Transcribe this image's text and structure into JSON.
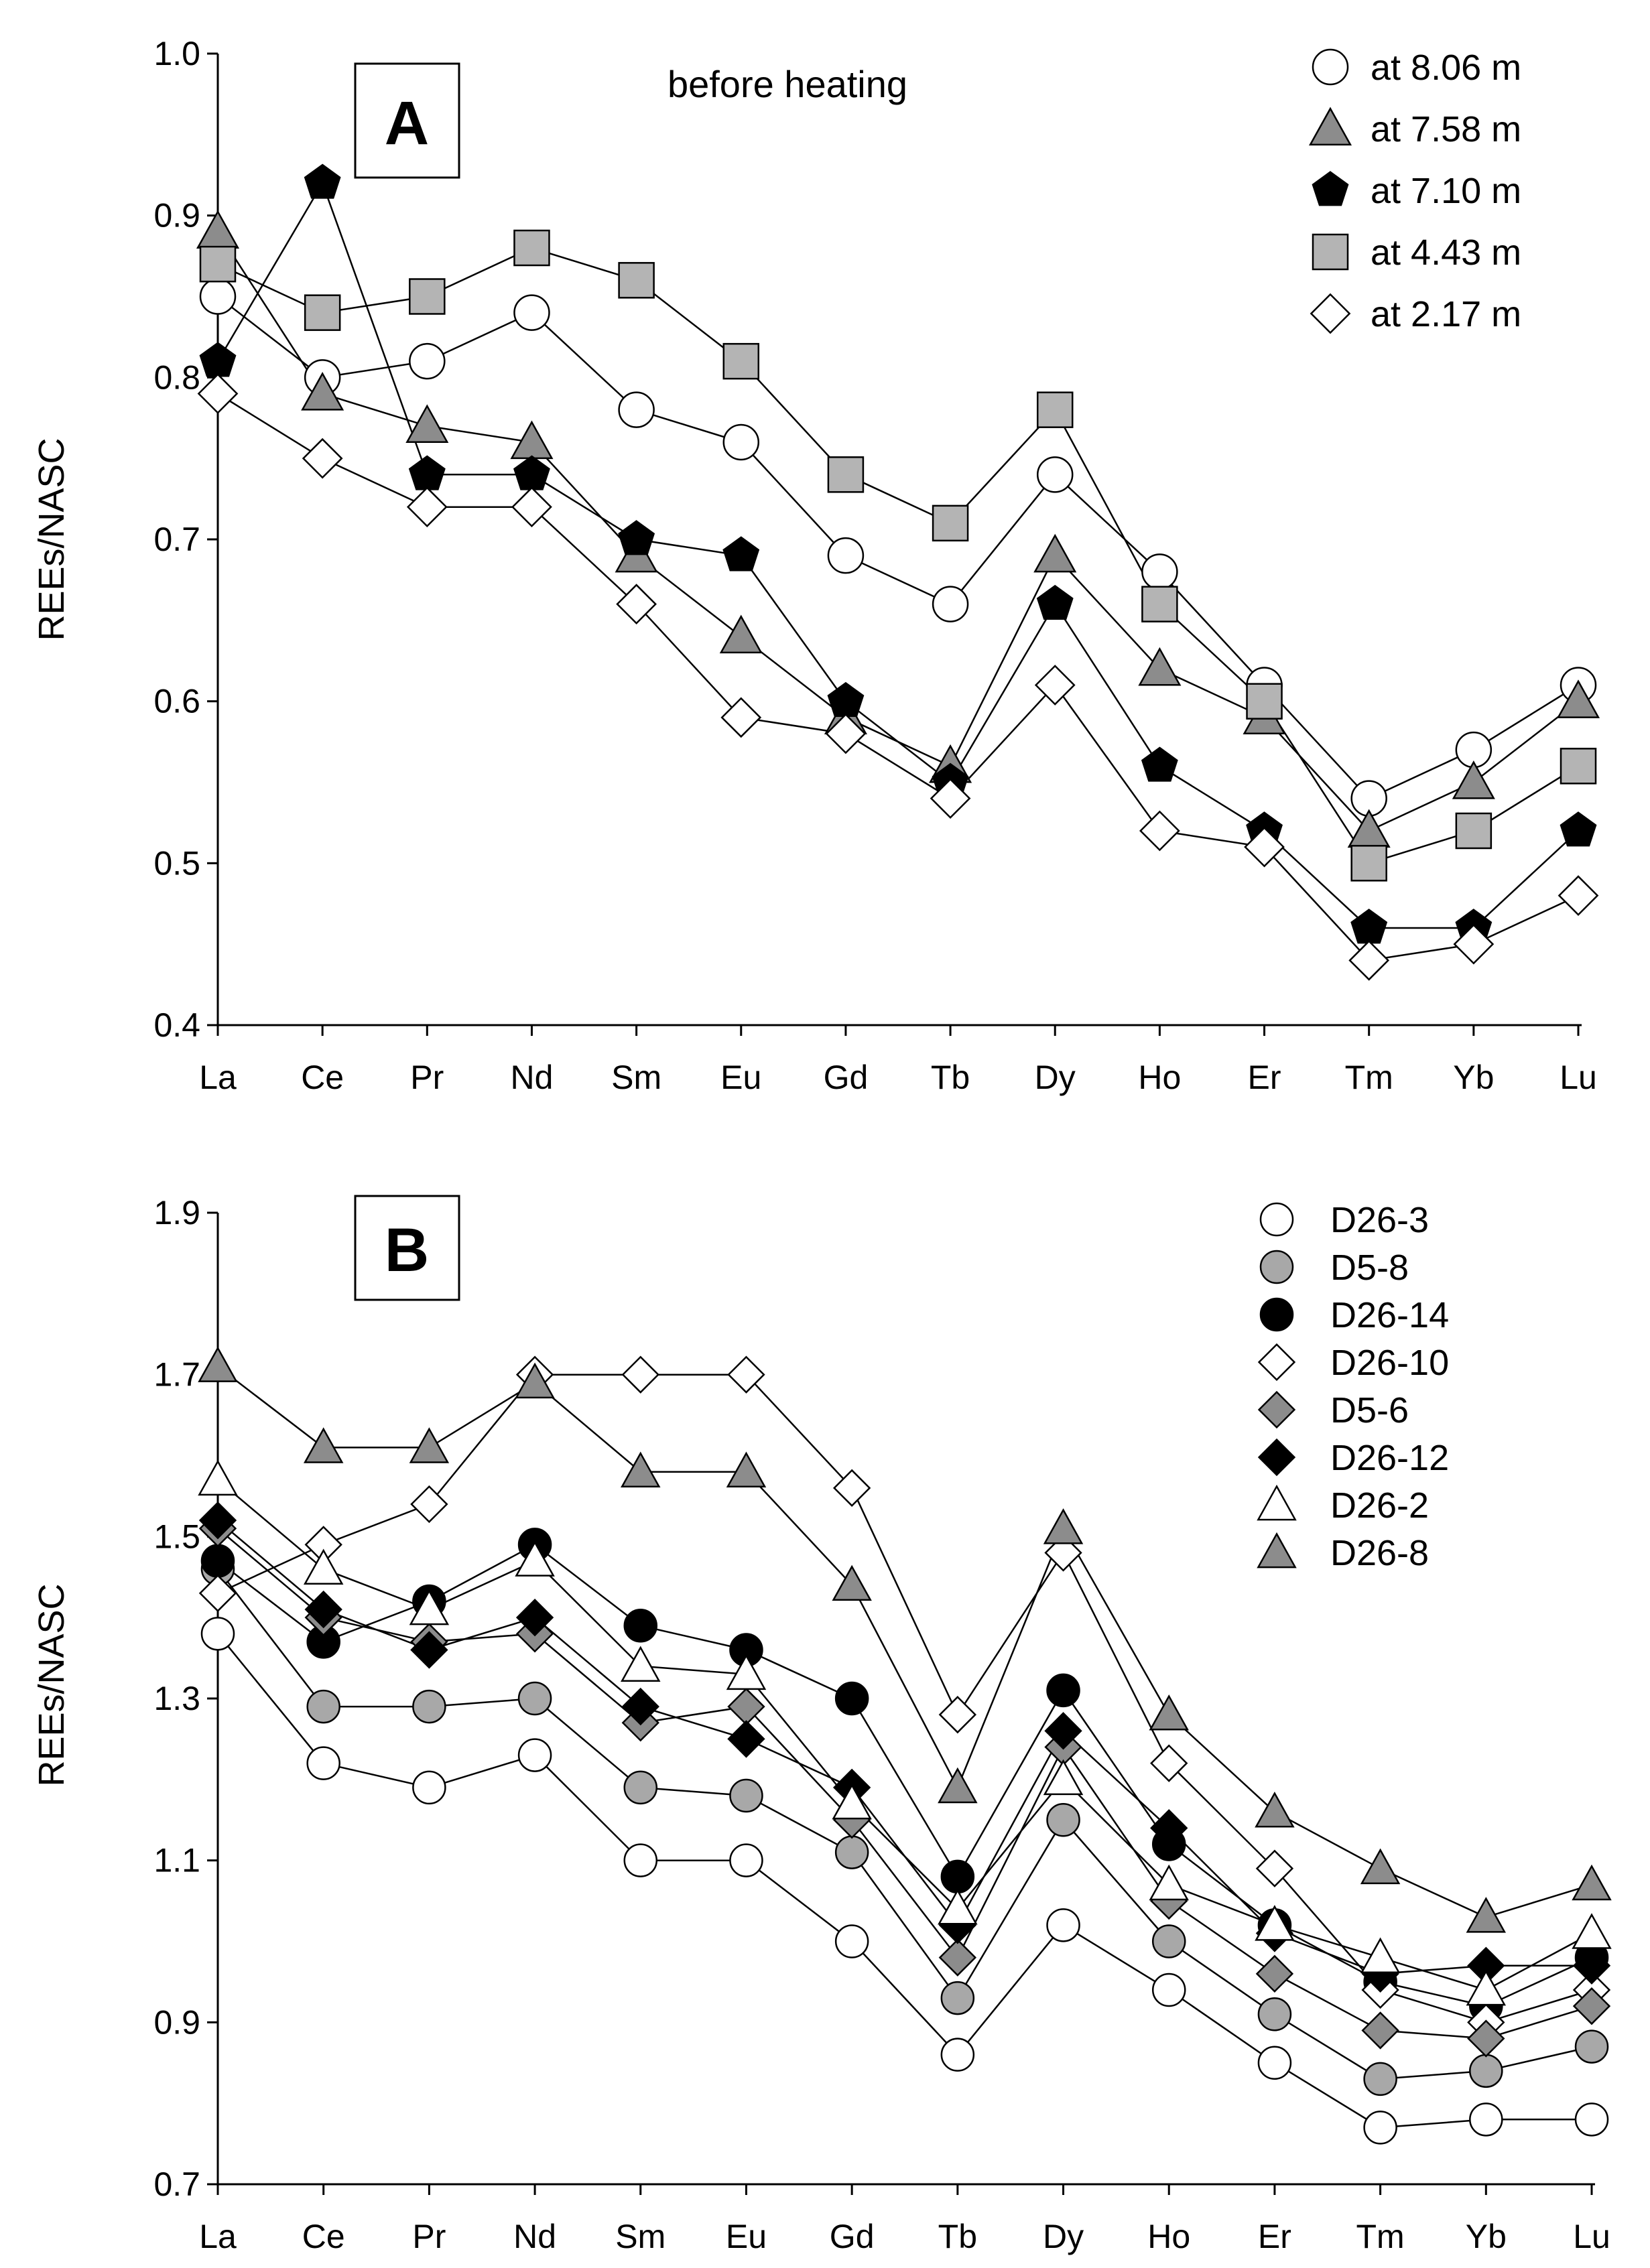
{
  "chart_data": [
    {
      "type": "line",
      "panel": "A",
      "annotation": "before heating",
      "xlabel": "",
      "ylabel": "REEs/NASC",
      "ylim": [
        0.4,
        1.0
      ],
      "yticks": [
        "0.4",
        "0.5",
        "0.6",
        "0.7",
        "0.8",
        "0.9",
        "1.0"
      ],
      "categories": [
        "La",
        "Ce",
        "Pr",
        "Nd",
        "Sm",
        "Eu",
        "Gd",
        "Tb",
        "Dy",
        "Ho",
        "Er",
        "Tm",
        "Yb",
        "Lu"
      ],
      "legend_position": "top-right",
      "series": [
        {
          "name": "at 8.06 m",
          "marker": "circle",
          "fill": "#ffffff",
          "values": [
            0.85,
            0.8,
            0.81,
            0.84,
            0.78,
            0.76,
            0.69,
            0.66,
            0.74,
            0.68,
            0.61,
            0.54,
            0.57,
            0.61
          ]
        },
        {
          "name": "at 7.58 m",
          "marker": "triangle",
          "fill": "#8c8c8c",
          "values": [
            0.89,
            0.79,
            0.77,
            0.76,
            0.69,
            0.64,
            0.59,
            0.56,
            0.69,
            0.62,
            0.59,
            0.52,
            0.55,
            0.6
          ]
        },
        {
          "name": "at 7.10 m",
          "marker": "pentagon",
          "fill": "#000000",
          "values": [
            0.81,
            0.92,
            0.74,
            0.74,
            0.7,
            0.69,
            0.6,
            0.55,
            0.66,
            0.56,
            0.52,
            0.46,
            0.46,
            0.52
          ]
        },
        {
          "name": "at 4.43 m",
          "marker": "square",
          "fill": "#b4b4b4",
          "values": [
            0.87,
            0.84,
            0.85,
            0.88,
            0.86,
            0.81,
            0.74,
            0.71,
            0.78,
            0.66,
            0.6,
            0.5,
            0.52,
            0.56
          ]
        },
        {
          "name": "at 2.17 m",
          "marker": "diamond",
          "fill": "#ffffff",
          "values": [
            0.79,
            0.75,
            0.72,
            0.72,
            0.66,
            0.59,
            0.58,
            0.54,
            0.61,
            0.52,
            0.51,
            0.44,
            0.45,
            0.48
          ]
        }
      ]
    },
    {
      "type": "line",
      "panel": "B",
      "xlabel": "",
      "ylabel": "REEs/NASC",
      "ylim": [
        0.7,
        1.9
      ],
      "yticks": [
        "0.7",
        "0.9",
        "1.1",
        "1.3",
        "1.5",
        "1.7",
        "1.9"
      ],
      "categories": [
        "La",
        "Ce",
        "Pr",
        "Nd",
        "Sm",
        "Eu",
        "Gd",
        "Tb",
        "Dy",
        "Ho",
        "Er",
        "Tm",
        "Yb",
        "Lu"
      ],
      "legend_position": "top-right",
      "series": [
        {
          "name": "D26-3",
          "marker": "circle",
          "fill": "#ffffff",
          "values": [
            1.38,
            1.22,
            1.19,
            1.23,
            1.1,
            1.1,
            1.0,
            0.86,
            1.02,
            0.94,
            0.85,
            0.77,
            0.78,
            0.78
          ]
        },
        {
          "name": "D5-8",
          "marker": "circle",
          "fill": "#a8a8a8",
          "values": [
            1.46,
            1.29,
            1.29,
            1.3,
            1.19,
            1.18,
            1.11,
            0.93,
            1.15,
            1.0,
            0.91,
            0.83,
            0.84,
            0.87
          ]
        },
        {
          "name": "D26-14",
          "marker": "circle",
          "fill": "#000000",
          "values": [
            1.47,
            1.37,
            1.42,
            1.49,
            1.39,
            1.36,
            1.3,
            1.08,
            1.31,
            1.12,
            1.02,
            0.95,
            0.92,
            0.98
          ]
        },
        {
          "name": "D26-10",
          "marker": "diamond",
          "fill": "#ffffff",
          "values": [
            1.43,
            1.49,
            1.54,
            1.7,
            1.7,
            1.7,
            1.56,
            1.28,
            1.48,
            1.22,
            1.09,
            0.94,
            0.9,
            0.94
          ]
        },
        {
          "name": "D5-6",
          "marker": "diamond",
          "fill": "#8c8c8c",
          "values": [
            1.51,
            1.4,
            1.37,
            1.38,
            1.27,
            1.29,
            1.15,
            0.98,
            1.24,
            1.05,
            0.96,
            0.89,
            0.88,
            0.92
          ]
        },
        {
          "name": "D26-12",
          "marker": "diamond",
          "fill": "#000000",
          "values": [
            1.52,
            1.41,
            1.36,
            1.4,
            1.29,
            1.25,
            1.19,
            1.02,
            1.26,
            1.14,
            1.01,
            0.96,
            0.97,
            0.97
          ]
        },
        {
          "name": "D26-2",
          "marker": "triangle",
          "fill": "#ffffff",
          "values": [
            1.57,
            1.46,
            1.41,
            1.47,
            1.34,
            1.33,
            1.17,
            1.04,
            1.2,
            1.07,
            1.02,
            0.98,
            0.94,
            1.01
          ]
        },
        {
          "name": "D26-8",
          "marker": "triangle",
          "fill": "#8c8c8c",
          "values": [
            1.71,
            1.61,
            1.61,
            1.69,
            1.58,
            1.58,
            1.44,
            1.19,
            1.51,
            1.28,
            1.16,
            1.09,
            1.03,
            1.07
          ]
        }
      ]
    }
  ]
}
